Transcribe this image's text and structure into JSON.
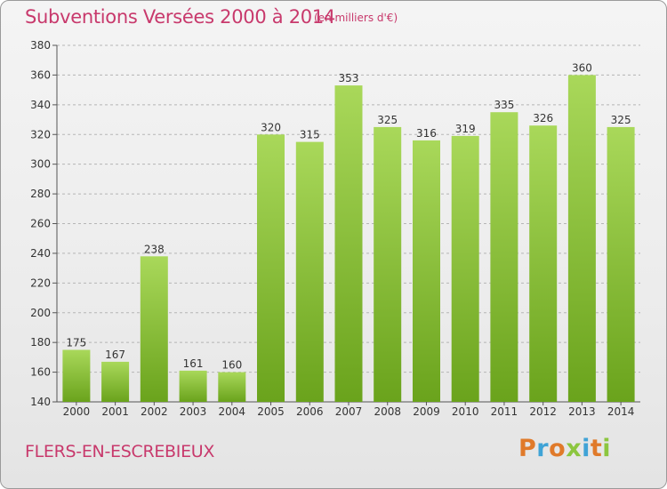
{
  "header": {
    "title": "Subventions Versées 2000 à 2014",
    "unit": "(en milliers d'€)"
  },
  "footer": {
    "place": "FLERS-EN-ESCREBIEUX",
    "logo": "Proxiti",
    "logo_letters": [
      {
        "ch": "P",
        "color": "#e07a2a"
      },
      {
        "ch": "r",
        "color": "#3fa3d6"
      },
      {
        "ch": "o",
        "color": "#e07a2a"
      },
      {
        "ch": "x",
        "color": "#8cc63f"
      },
      {
        "ch": "i",
        "color": "#3fa3d6"
      },
      {
        "ch": "t",
        "color": "#e07a2a"
      },
      {
        "ch": "i",
        "color": "#8cc63f"
      }
    ]
  },
  "colors": {
    "text_accent": "#c8396c",
    "bar_light": "#a9d85a",
    "bar_dark": "#6aa31c",
    "grid": "#b5b5b5"
  },
  "chart_data": {
    "type": "bar",
    "title": "Subventions Versées 2000 à 2014",
    "subtitle": "(en milliers d'€)",
    "categories": [
      "2000",
      "2001",
      "2002",
      "2003",
      "2004",
      "2005",
      "2006",
      "2007",
      "2008",
      "2009",
      "2010",
      "2011",
      "2012",
      "2013",
      "2014"
    ],
    "values": [
      175,
      167,
      238,
      161,
      160,
      320,
      315,
      353,
      325,
      316,
      319,
      335,
      326,
      360,
      325
    ],
    "ylim": [
      140,
      380
    ],
    "yticks": [
      140,
      160,
      180,
      200,
      220,
      240,
      260,
      280,
      300,
      320,
      340,
      360,
      380
    ],
    "grid": true,
    "data_labels": true
  }
}
